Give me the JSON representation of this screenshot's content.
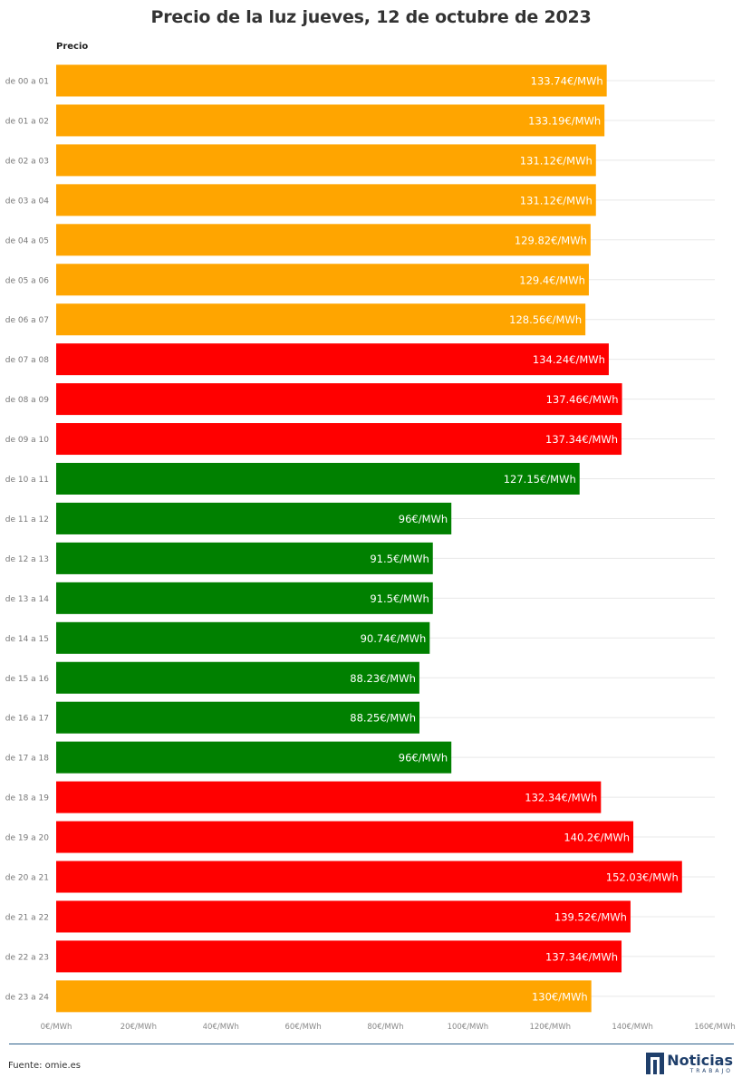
{
  "chart_data": {
    "type": "bar",
    "orientation": "horizontal",
    "title": "Precio de la luz jueves, 12 de octubre de 2023",
    "series_label": "Precio",
    "categories": [
      "de 00 a 01",
      "de 01 a 02",
      "de 02 a 03",
      "de 03 a 04",
      "de 04 a 05",
      "de 05 a 06",
      "de 06 a 07",
      "de 07 a 08",
      "de 08 a 09",
      "de 09 a 10",
      "de 10 a 11",
      "de 11 a 12",
      "de 12 a 13",
      "de 13 a 14",
      "de 14 a 15",
      "de 15 a 16",
      "de 16 a 17",
      "de 17 a 18",
      "de 18 a 19",
      "de 19 a 20",
      "de 20 a 21",
      "de 21 a 22",
      "de 22 a 23",
      "de 23 a 24"
    ],
    "values": [
      133.74,
      133.19,
      131.12,
      131.12,
      129.82,
      129.4,
      128.56,
      134.24,
      137.46,
      137.34,
      127.15,
      96,
      91.5,
      91.5,
      90.74,
      88.23,
      88.25,
      96,
      132.34,
      140.2,
      152.03,
      139.52,
      137.34,
      130
    ],
    "value_labels": [
      "133.74€/MWh",
      "133.19€/MWh",
      "131.12€/MWh",
      "131.12€/MWh",
      "129.82€/MWh",
      "129.4€/MWh",
      "128.56€/MWh",
      "134.24€/MWh",
      "137.46€/MWh",
      "137.34€/MWh",
      "127.15€/MWh",
      "96€/MWh",
      "91.5€/MWh",
      "91.5€/MWh",
      "90.74€/MWh",
      "88.23€/MWh",
      "88.25€/MWh",
      "96€/MWh",
      "132.34€/MWh",
      "140.2€/MWh",
      "152.03€/MWh",
      "139.52€/MWh",
      "137.34€/MWh",
      "130€/MWh"
    ],
    "bar_colors": [
      "#FFA500",
      "#FFA500",
      "#FFA500",
      "#FFA500",
      "#FFA500",
      "#FFA500",
      "#FFA500",
      "#FF0000",
      "#FF0000",
      "#FF0000",
      "#008000",
      "#008000",
      "#008000",
      "#008000",
      "#008000",
      "#008000",
      "#008000",
      "#008000",
      "#FF0000",
      "#FF0000",
      "#FF0000",
      "#FF0000",
      "#FF0000",
      "#FFA500"
    ],
    "xlim": [
      0,
      160
    ],
    "x_ticks": [
      0,
      20,
      40,
      60,
      80,
      100,
      120,
      140,
      160
    ],
    "x_tick_labels": [
      "0€/MWh",
      "20€/MWh",
      "40€/MWh",
      "60€/MWh",
      "80€/MWh",
      "100€/MWh",
      "120€/MWh",
      "140€/MWh",
      "160€/MWh"
    ],
    "grid": true
  },
  "footer": {
    "source": "Fuente: omie.es",
    "logo_main": "Noticias",
    "logo_sub": "TRABAJO"
  },
  "colors": {
    "expensive": "#FF0000",
    "medium": "#FFA500",
    "cheap": "#008000",
    "brand": "#1f3f6b"
  }
}
